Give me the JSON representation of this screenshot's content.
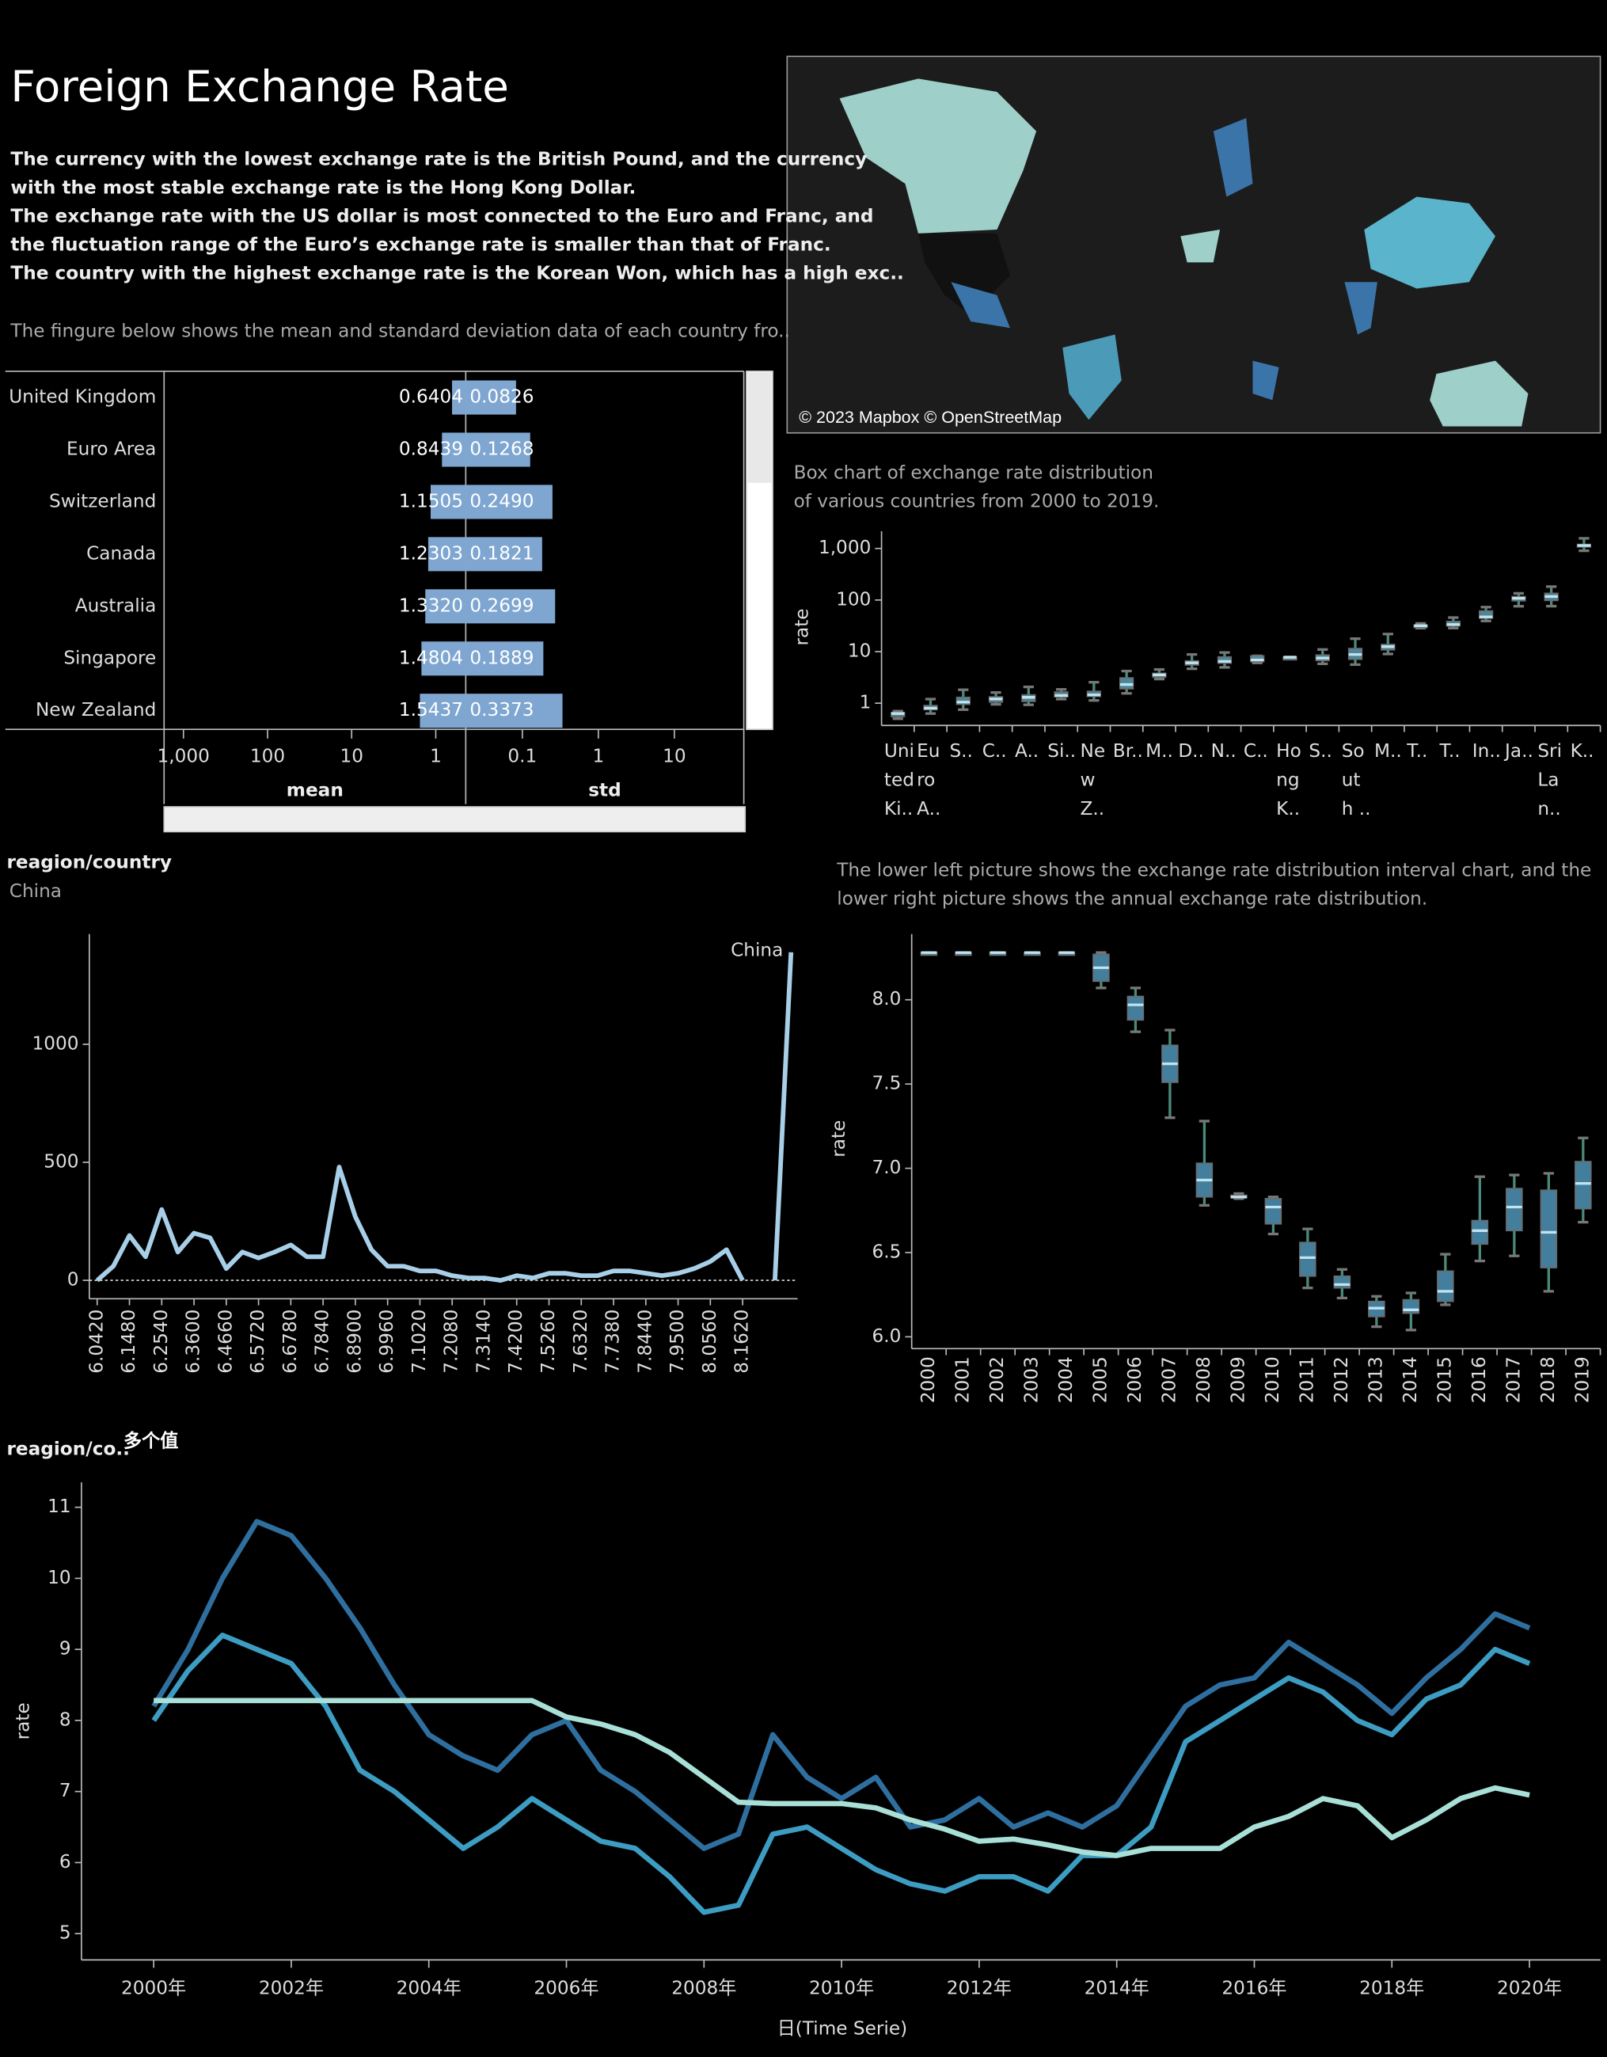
{
  "title": "Foreign Exchange Rate",
  "description": [
    "The currency with the lowest exchange rate is the British Pound, and the currency",
    "with the most stable exchange rate is the Hong Kong Dollar.",
    "The exchange rate with the US dollar is most connected to the Euro and Franc, and",
    "the fluctuation range of the Euro’s exchange rate is smaller than that of Franc.",
    "The country with the highest exchange rate is the Korean Won, which has a high exc.."
  ],
  "note": "The fingure below shows the mean and standard deviation data of each country fro..",
  "map": {
    "attribution": "© 2023 Mapbox © OpenStreetMap"
  },
  "chart_data": [
    {
      "type": "bar",
      "orientation": "horizontal",
      "log_scale": true,
      "categories": [
        "United Kingdom",
        "Euro Area",
        "Switzerland",
        "Canada",
        "Australia",
        "Singapore",
        "New Zealand"
      ],
      "series": [
        {
          "name": "mean",
          "color": "#7ea6d0",
          "values": [
            0.6404,
            0.8439,
            1.1505,
            1.2303,
            1.332,
            1.4804,
            1.5437
          ],
          "value_labels": [
            "0.6404",
            "0.8439",
            "1.1505",
            "1.2303",
            "1.3320",
            "1.4804",
            "1.5437"
          ],
          "xlim": [
            1700,
            0.44
          ],
          "xticks": [
            {
              "value": 1000,
              "label": "1,000"
            },
            100,
            10,
            1
          ]
        },
        {
          "name": "std",
          "color": "#7ea6d0",
          "values": [
            0.0826,
            0.1268,
            0.249,
            0.1821,
            0.2699,
            0.1889,
            0.3373
          ],
          "value_labels": [
            "0.0826",
            "0.1268",
            "0.2490",
            "0.1821",
            "0.2699",
            "0.1889",
            "0.3373"
          ],
          "xlim": [
            0.018,
            82
          ],
          "xticks": [
            0.1,
            1,
            10
          ]
        }
      ]
    },
    {
      "type": "box",
      "log_scale": true,
      "title": [
        "Box chart of exchange rate distribution",
        "of various countries from 2000 to 2019."
      ],
      "y_label": "rate",
      "color": "#5b9db5",
      "whisker_color": "#4a8a7a",
      "categories": [
        [
          "Uni",
          "ted",
          "Ki.."
        ],
        [
          "Eu",
          "ro",
          "A.."
        ],
        [
          "S.."
        ],
        [
          "C.."
        ],
        [
          "A.."
        ],
        [
          "Si.."
        ],
        [
          "Ne",
          "w",
          "Z.."
        ],
        [
          "Br.."
        ],
        [
          "M.."
        ],
        [
          "D.."
        ],
        [
          "N.."
        ],
        [
          "C.."
        ],
        [
          "Ho",
          "ng",
          "K.."
        ],
        [
          "S.."
        ],
        [
          "So",
          "ut",
          "h .."
        ],
        [
          "M.."
        ],
        [
          "T.."
        ],
        [
          "T.."
        ],
        [
          "In.."
        ],
        [
          "Ja.."
        ],
        [
          "Sri",
          "La",
          "n.."
        ],
        [
          "K.."
        ]
      ],
      "min": [
        0.5,
        0.63,
        0.75,
        0.95,
        0.93,
        1.2,
        1.13,
        1.55,
        2.94,
        4.65,
        4.95,
        6.04,
        7.75,
        5.8,
        5.6,
        9.0,
        28.5,
        28.6,
        39.3,
        75.7,
        76,
        902
      ],
      "q1": [
        0.55,
        0.75,
        0.95,
        1.05,
        1.08,
        1.33,
        1.35,
        1.9,
        3.2,
        5.5,
        5.95,
        6.4,
        7.76,
        6.7,
        7.1,
        10.8,
        30.5,
        31.6,
        44.5,
        96.5,
        98,
        1070
      ],
      "median": [
        0.63,
        0.8,
        1.05,
        1.21,
        1.3,
        1.41,
        1.45,
        2.3,
        3.55,
        6.05,
        6.45,
        6.9,
        7.78,
        7.5,
        8.8,
        12.5,
        31.7,
        33.5,
        47.0,
        108.5,
        117,
        1140
      ],
      "q3": [
        0.66,
        0.9,
        1.3,
        1.33,
        1.45,
        1.65,
        1.7,
        3.1,
        3.8,
        6.6,
        7.9,
        8.28,
        7.8,
        8.6,
        11.5,
        13.8,
        32.9,
        38.5,
        61.5,
        116.5,
        135,
        1200
      ],
      "max": [
        0.7,
        1.2,
        1.82,
        1.61,
        2.07,
        1.85,
        2.55,
        4.2,
        4.5,
        8.8,
        9.6,
        8.28,
        7.85,
        11.0,
        17.8,
        21.9,
        35.2,
        45.7,
        72.9,
        134.7,
        182,
        1570
      ],
      "ylim": [
        0.37,
        2150
      ],
      "yticks": [
        1,
        10,
        100,
        {
          "value": 1000,
          "label": "1,000"
        }
      ]
    },
    {
      "type": "line",
      "filter_label": "reagion/country",
      "filter_value": "China",
      "annotation": "China",
      "categories": [
        "6.0420",
        null,
        "6.1480",
        null,
        "6.2540",
        null,
        "6.3600",
        null,
        "6.4660",
        null,
        "6.5720",
        null,
        "6.6780",
        null,
        "6.7840",
        null,
        "6.8900",
        null,
        "6.9960",
        null,
        "7.1020",
        null,
        "7.2080",
        null,
        "7.3140",
        null,
        "7.4200",
        null,
        "7.5260",
        null,
        "7.6320",
        null,
        "7.7380",
        null,
        "7.8440",
        null,
        "7.9500",
        null,
        "8.0560",
        null,
        "8.1620",
        null,
        null,
        null
      ],
      "values": [
        0,
        60,
        190,
        100,
        300,
        120,
        200,
        180,
        50,
        120,
        95,
        120,
        150,
        100,
        100,
        480,
        270,
        130,
        60,
        60,
        40,
        40,
        20,
        10,
        10,
        0,
        20,
        10,
        30,
        30,
        20,
        20,
        40,
        40,
        30,
        20,
        30,
        50,
        80,
        130,
        0,
        null,
        0,
        1390
      ],
      "color": "#a8cfe8",
      "ylim": [
        -78,
        1467
      ],
      "yticks": [
        0,
        500,
        1000
      ]
    },
    {
      "type": "box",
      "title": [
        "The lower left picture shows the exchange rate distribution interval chart, and the",
        "lower right picture shows the annual exchange rate distribution."
      ],
      "y_label": "rate",
      "color": "#4f94b8",
      "whisker_color": "#4a8a7a",
      "categories": [
        "2000",
        "2001",
        "2002",
        "2003",
        "2004",
        "2005",
        "2006",
        "2007",
        "2008",
        "2009",
        "2010",
        "2011",
        "2012",
        "2013",
        "2014",
        "2015",
        "2016",
        "2017",
        "2018",
        "2019"
      ],
      "min": [
        8.28,
        8.28,
        8.28,
        8.28,
        8.28,
        8.07,
        7.81,
        7.3,
        6.78,
        6.82,
        6.61,
        6.29,
        6.23,
        6.06,
        6.04,
        6.19,
        6.45,
        6.48,
        6.27,
        6.68
      ],
      "q1": [
        8.28,
        8.28,
        8.28,
        8.28,
        8.28,
        8.11,
        7.88,
        7.51,
        6.83,
        6.826,
        6.67,
        6.36,
        6.29,
        6.12,
        6.14,
        6.21,
        6.55,
        6.63,
        6.41,
        6.76
      ],
      "median": [
        8.28,
        8.28,
        8.28,
        8.28,
        8.28,
        8.19,
        7.97,
        7.62,
        6.93,
        6.83,
        6.77,
        6.47,
        6.31,
        6.17,
        6.16,
        6.27,
        6.63,
        6.77,
        6.62,
        6.91
      ],
      "q3": [
        8.28,
        8.28,
        8.28,
        8.28,
        8.28,
        8.27,
        8.02,
        7.73,
        7.03,
        6.84,
        6.82,
        6.56,
        6.36,
        6.21,
        6.22,
        6.39,
        6.69,
        6.88,
        6.87,
        7.04
      ],
      "max": [
        8.28,
        8.28,
        8.28,
        8.28,
        8.28,
        8.28,
        8.07,
        7.82,
        7.28,
        6.85,
        6.83,
        6.64,
        6.4,
        6.24,
        6.26,
        6.49,
        6.95,
        6.96,
        6.97,
        7.18
      ],
      "ylim": [
        5.93,
        8.39
      ],
      "yticks": [
        {
          "value": 6,
          "label": "6.0"
        },
        6.5,
        {
          "value": 7,
          "label": "7.0"
        },
        7.5,
        {
          "value": 8,
          "label": "8.0"
        }
      ]
    },
    {
      "type": "line",
      "filter_label": "reagion/co..",
      "filter_value": "多个值",
      "y_label": "rate",
      "x_label": "日(Time Serie)",
      "x": [
        2000,
        2000.5,
        2001,
        2001.5,
        2002,
        2002.5,
        2003,
        2003.5,
        2004,
        2004.5,
        2005,
        2005.5,
        2006,
        2006.5,
        2007,
        2007.5,
        2008,
        2008.5,
        2009,
        2009.5,
        2010,
        2010.5,
        2011,
        2011.5,
        2012,
        2012.5,
        2013,
        2013.5,
        2014,
        2014.5,
        2015,
        2015.5,
        2016,
        2016.5,
        2017,
        2017.5,
        2018,
        2018.5,
        2019,
        2019.5,
        2020
      ],
      "series": [
        {
          "color": "#2f6f9f",
          "values": [
            8.2,
            9.0,
            10.0,
            10.8,
            10.6,
            10.0,
            9.3,
            8.5,
            7.8,
            7.5,
            7.3,
            7.8,
            8.0,
            7.3,
            7.0,
            6.6,
            6.2,
            6.4,
            7.8,
            7.2,
            6.9,
            7.2,
            6.5,
            6.6,
            6.9,
            6.5,
            6.7,
            6.5,
            6.8,
            7.5,
            8.2,
            8.5,
            8.6,
            9.1,
            8.8,
            8.5,
            8.1,
            8.6,
            9.0,
            9.5,
            9.3
          ]
        },
        {
          "color": "#3d9cc2",
          "values": [
            8.0,
            8.7,
            9.2,
            9.0,
            8.8,
            8.2,
            7.3,
            7.0,
            6.6,
            6.2,
            6.5,
            6.9,
            6.6,
            6.3,
            6.2,
            5.8,
            5.3,
            5.4,
            6.4,
            6.5,
            6.2,
            5.9,
            5.7,
            5.6,
            5.8,
            5.8,
            5.6,
            6.1,
            6.1,
            6.5,
            7.7,
            8.0,
            8.3,
            8.6,
            8.4,
            8.0,
            7.8,
            8.3,
            8.5,
            9.0,
            8.8
          ]
        },
        {
          "color": "#a8e0d8",
          "values": [
            8.28,
            8.28,
            8.28,
            8.28,
            8.28,
            8.28,
            8.28,
            8.28,
            8.28,
            8.28,
            8.28,
            8.28,
            8.05,
            7.95,
            7.8,
            7.55,
            7.2,
            6.85,
            6.83,
            6.83,
            6.83,
            6.77,
            6.6,
            6.47,
            6.3,
            6.33,
            6.25,
            6.15,
            6.1,
            6.2,
            6.2,
            6.2,
            6.5,
            6.65,
            6.9,
            6.8,
            6.35,
            6.6,
            6.9,
            7.05,
            6.95
          ]
        }
      ],
      "xlim": [
        1998.95,
        2021.03
      ],
      "xticks": [
        {
          "value": 2000,
          "label": "2000年"
        },
        {
          "value": 2002,
          "label": "2002年"
        },
        {
          "value": 2004,
          "label": "2004年"
        },
        {
          "value": 2006,
          "label": "2006年"
        },
        {
          "value": 2008,
          "label": "2008年"
        },
        {
          "value": 2010,
          "label": "2010年"
        },
        {
          "value": 2012,
          "label": "2012年"
        },
        {
          "value": 2014,
          "label": "2014年"
        },
        {
          "value": 2016,
          "label": "2016年"
        },
        {
          "value": 2018,
          "label": "2018年"
        },
        {
          "value": 2020,
          "label": "2020年"
        }
      ],
      "ylim": [
        4.63,
        11.35
      ],
      "yticks": [
        5,
        6,
        7,
        8,
        9,
        10,
        11
      ]
    }
  ]
}
